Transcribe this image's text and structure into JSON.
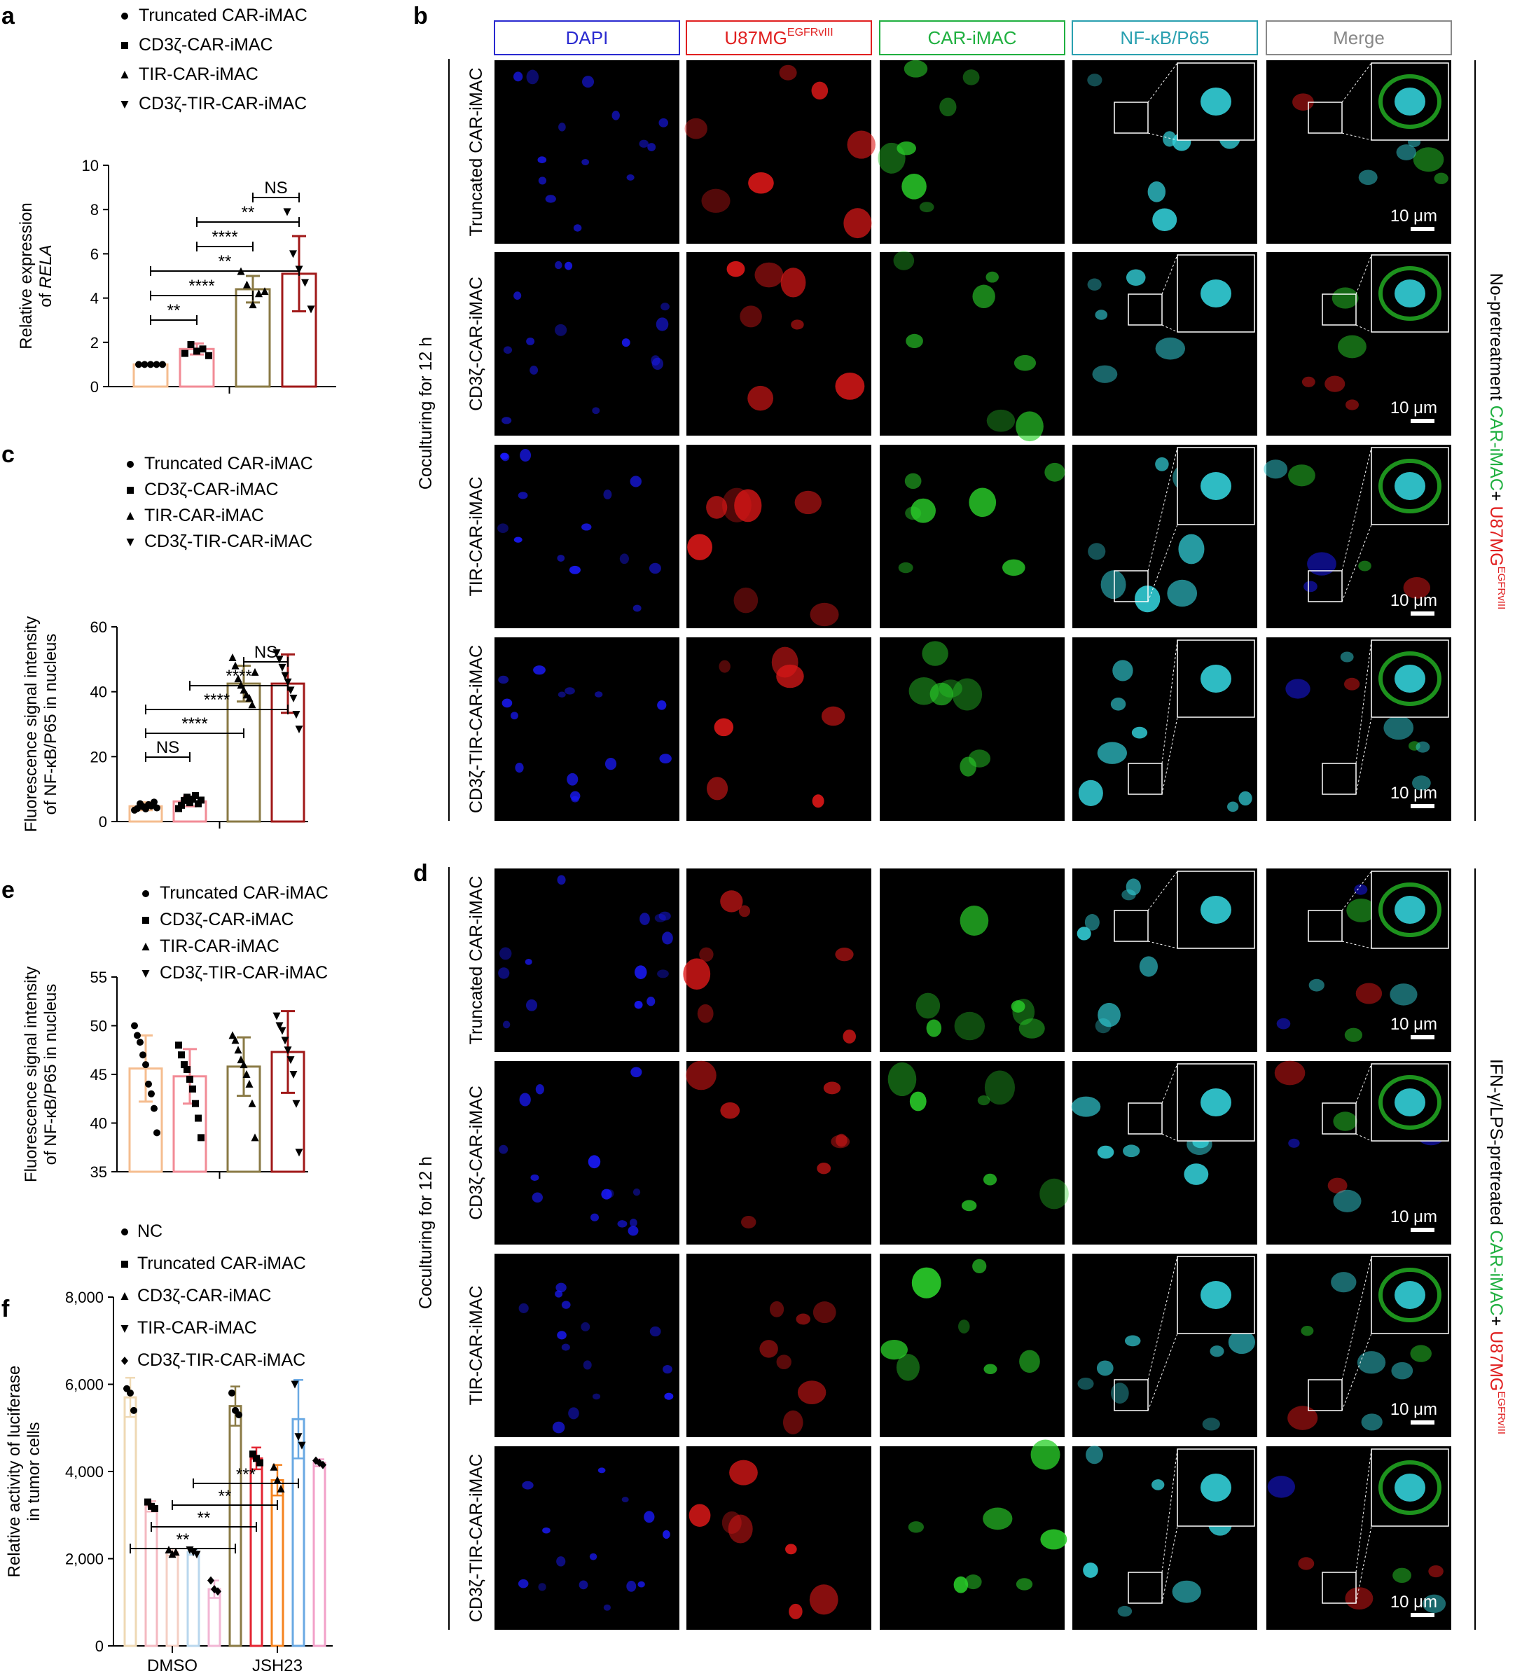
{
  "panel_letters": [
    "a",
    "b",
    "c",
    "d",
    "e",
    "f"
  ],
  "colors": {
    "truncated": "#f5bd8f",
    "cd3z": "#f28b96",
    "tir": "#8a7a45",
    "cd3z_tir": "#a01818",
    "dapi_header": "#2a2ad0",
    "u87_header": "#e02020",
    "car_header": "#20b040",
    "nfkb_header": "#2aa0b0",
    "merge_header": "#888888",
    "f_nc": "#f5d9b8",
    "f_truncated": "#f3a9b4",
    "f_cd3z": "#8a7a45",
    "f_tir": "#f58a1f",
    "f_cd3z_tir_dmso": "#d9b3d9",
    "f_jsh_tir": "#7ab4e8",
    "f_jsh_cd3z_tir": "#f2a6c9"
  },
  "chart_data": [
    {
      "panel": "a",
      "type": "bar",
      "legend": [
        "Truncated CAR-iMAC",
        "CD3ζ-CAR-iMAC",
        "TIR-CAR-iMAC",
        "CD3ζ-TIR-CAR-iMAC"
      ],
      "ylabel_line1": "Relative expression",
      "ylabel_line2_prefix": "of ",
      "ylabel_line2_italic": "RELA",
      "ylim": [
        0,
        10
      ],
      "yticks": [
        "0",
        "2",
        "4",
        "6",
        "8",
        "10"
      ],
      "series": [
        {
          "name": "Truncated CAR-iMAC",
          "mean": 1.0,
          "sd": 0.0,
          "points": [
            1,
            1,
            1,
            1,
            1
          ]
        },
        {
          "name": "CD3ζ-CAR-iMAC",
          "mean": 1.7,
          "sd": 0.25,
          "points": [
            1.5,
            1.9,
            1.6,
            1.7,
            1.4
          ]
        },
        {
          "name": "TIR-CAR-iMAC",
          "mean": 4.4,
          "sd": 0.6,
          "points": [
            5.2,
            4.6,
            3.7,
            4.2,
            4.3
          ]
        },
        {
          "name": "CD3ζ-TIR-CAR-iMAC",
          "mean": 5.1,
          "sd": 1.7,
          "points": [
            7.9,
            6.0,
            5.3,
            4.7,
            3.5
          ]
        }
      ],
      "significance": [
        {
          "label": "**",
          "from": 0,
          "to": 1
        },
        {
          "label": "****",
          "from": 0,
          "to": 2
        },
        {
          "label": "**",
          "from": 0,
          "to": 3
        },
        {
          "label": "****",
          "from": 1,
          "to": 2
        },
        {
          "label": "**",
          "from": 1,
          "to": 3
        },
        {
          "label": "NS",
          "from": 2,
          "to": 3
        }
      ]
    },
    {
      "panel": "c",
      "type": "bar",
      "legend": [
        "Truncated CAR-iMAC",
        "CD3ζ-CAR-iMAC",
        "TIR-CAR-iMAC",
        "CD3ζ-TIR-CAR-iMAC"
      ],
      "ylabel_line1": "Fluorescence signal intensity",
      "ylabel_line2": "of NF-κB/P65 in nucleus",
      "ylim": [
        0,
        60
      ],
      "yticks": [
        "0",
        "20",
        "40",
        "60"
      ],
      "series": [
        {
          "name": "Truncated CAR-iMAC",
          "mean": 4.7,
          "sd": 1.2,
          "points": [
            3.5,
            4.0,
            5.5,
            4.6,
            3.9,
            5.2,
            4.8,
            6.0,
            4.2
          ]
        },
        {
          "name": "CD3ζ-CAR-iMAC",
          "mean": 6.2,
          "sd": 1.5,
          "points": [
            4.0,
            5.0,
            6.5,
            7.5,
            5.8,
            6.9,
            8.0,
            5.5,
            6.6
          ]
        },
        {
          "name": "TIR-CAR-iMAC",
          "mean": 42.5,
          "sd": 5.5,
          "points": [
            50.5,
            48.0,
            44.0,
            42.0,
            40.5,
            39.0,
            38.0,
            36.0,
            46.0
          ]
        },
        {
          "name": "CD3ζ-TIR-CAR-iMAC",
          "mean": 42.5,
          "sd": 9.0,
          "points": [
            52.0,
            50.0,
            47.5,
            45.0,
            43.0,
            40.5,
            38.0,
            33.0,
            28.5
          ]
        }
      ],
      "significance": [
        {
          "label": "NS",
          "from": 0,
          "to": 1
        },
        {
          "label": "****",
          "from": 0,
          "to": 2
        },
        {
          "label": "****",
          "from": 0,
          "to": 3
        },
        {
          "label": "****",
          "from": 1,
          "to": 3
        },
        {
          "label": "NS",
          "from": 2,
          "to": 3
        }
      ]
    },
    {
      "panel": "e",
      "type": "bar",
      "legend": [
        "Truncated CAR-iMAC",
        "CD3ζ-CAR-iMAC",
        "TIR-CAR-iMAC",
        "CD3ζ-TIR-CAR-iMAC"
      ],
      "ylabel_line1": "Fluorescence signal intensity",
      "ylabel_line2": "of NF-κB/P65 in nucleus",
      "ylim": [
        35,
        55
      ],
      "yticks": [
        "35",
        "40",
        "45",
        "50",
        "55"
      ],
      "series": [
        {
          "name": "Truncated CAR-iMAC",
          "mean": 45.6,
          "sd": 3.4,
          "points": [
            50.0,
            49.0,
            48.3,
            47.0,
            46.0,
            44.0,
            43.0,
            41.5,
            39.0
          ]
        },
        {
          "name": "CD3ζ-CAR-iMAC",
          "mean": 44.8,
          "sd": 2.8,
          "points": [
            48.0,
            47.0,
            46.0,
            45.5,
            44.5,
            43.5,
            42.0,
            40.5,
            38.5
          ]
        },
        {
          "name": "TIR-CAR-iMAC",
          "mean": 45.8,
          "sd": 3.0,
          "points": [
            49.0,
            48.5,
            47.5,
            46.5,
            46.0,
            45.0,
            44.0,
            42.0,
            38.5
          ]
        },
        {
          "name": "CD3ζ-TIR-CAR-iMAC",
          "mean": 47.3,
          "sd": 4.2,
          "points": [
            51.0,
            50.0,
            49.5,
            48.5,
            47.5,
            46.5,
            45.0,
            42.0,
            37.0
          ]
        }
      ]
    },
    {
      "panel": "f",
      "type": "bar",
      "legend": [
        "NC",
        "Truncated CAR-iMAC",
        "CD3ζ-CAR-iMAC",
        "TIR-CAR-iMAC",
        "CD3ζ-TIR-CAR-iMAC"
      ],
      "ylabel_line1": "Relative activity of luciferase",
      "ylabel_line2": "in tumor cells",
      "ylim": [
        0,
        8000
      ],
      "yticks": [
        "0",
        "2,000",
        "4,000",
        "6,000",
        "8,000"
      ],
      "categories": [
        "DMSO",
        "JSH23"
      ],
      "groups": [
        {
          "category": "DMSO",
          "bars": [
            {
              "name": "NC",
              "mean": 5700,
              "sd": 450,
              "points": [
                5900,
                5800,
                5400
              ]
            },
            {
              "name": "Truncated CAR-iMAC",
              "mean": 3200,
              "sd": 120,
              "points": [
                3300,
                3200,
                3150
              ]
            },
            {
              "name": "CD3ζ-CAR-iMAC",
              "mean": 2150,
              "sd": 80,
              "points": [
                2200,
                2100,
                2150
              ]
            },
            {
              "name": "TIR-CAR-iMAC",
              "mean": 2150,
              "sd": 60,
              "points": [
                2200,
                2150,
                2100
              ]
            },
            {
              "name": "CD3ζ-TIR-CAR-iMAC",
              "mean": 1300,
              "sd": 200,
              "points": [
                1500,
                1300,
                1250
              ]
            }
          ]
        },
        {
          "category": "JSH23",
          "bars": [
            {
              "name": "NC",
              "mean": 5500,
              "sd": 450,
              "points": [
                5800,
                5400,
                5300
              ]
            },
            {
              "name": "Truncated CAR-iMAC",
              "mean": 4300,
              "sd": 250,
              "points": [
                4400,
                4300,
                4200
              ]
            },
            {
              "name": "CD3ζ-CAR-iMAC",
              "mean": 3800,
              "sd": 350,
              "points": [
                4100,
                3800,
                3600
              ]
            },
            {
              "name": "TIR-CAR-iMAC",
              "mean": 5200,
              "sd": 900,
              "points": [
                6000,
                4800,
                4600
              ]
            },
            {
              "name": "CD3ζ-TIR-CAR-iMAC",
              "mean": 4200,
              "sd": 80,
              "points": [
                4250,
                4200,
                4150
              ]
            }
          ]
        }
      ],
      "significance": [
        {
          "label": "**",
          "from": [
            0,
            0
          ],
          "to": [
            1,
            0
          ]
        },
        {
          "label": "**",
          "from": [
            0,
            1
          ],
          "to": [
            1,
            1
          ]
        },
        {
          "label": "**",
          "from": [
            0,
            2
          ],
          "to": [
            1,
            2
          ]
        },
        {
          "label": "***",
          "from": [
            0,
            3
          ],
          "to": [
            1,
            3
          ]
        }
      ]
    }
  ],
  "microscopy": {
    "column_headers": [
      "DAPI",
      "U87MG",
      "CAR-iMAC",
      "NF-κB/P65",
      "Merge"
    ],
    "u87_superscript": "EGFRvIII",
    "row_labels": [
      "Truncated CAR-iMAC",
      "CD3ζ-CAR-iMAC",
      "TIR-CAR-iMAC",
      "CD3ζ-TIR-CAR-iMAC"
    ],
    "coculture_label": "Coculturing for 12 h",
    "scale_bar": "10 μm",
    "b_side_label": {
      "prefix": "No-pretreatment ",
      "green": "CAR-iMAC",
      "plus": "+ ",
      "red": "U87MG",
      "sup": "EGFRvIII"
    },
    "d_side_label": {
      "prefix": "IFN-γ/LPS-pretreated ",
      "green": "CAR-iMAC",
      "plus": "+ ",
      "red": "U87MG",
      "sup": "EGFRvIII"
    }
  }
}
